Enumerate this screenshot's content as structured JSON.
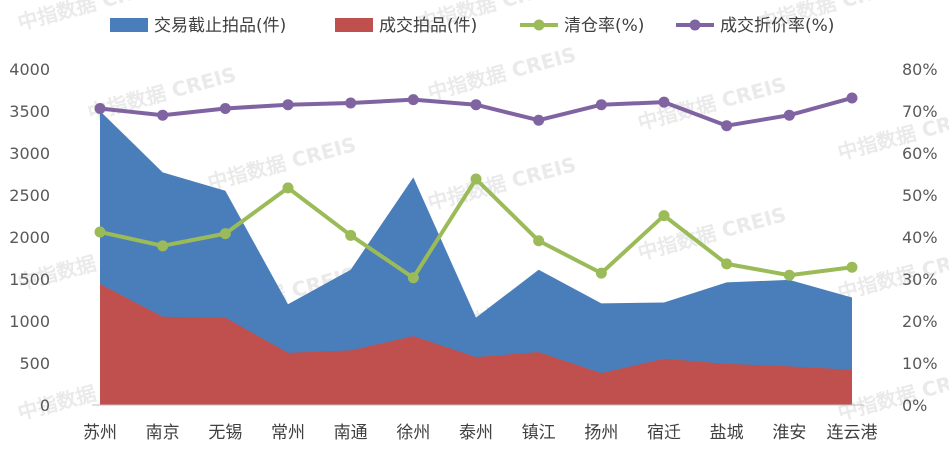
{
  "watermark": "中指数据 CREIS",
  "colors": {
    "area1": "#4a7ebb",
    "area2": "#c0504d",
    "line1": "#9bbb59",
    "line2": "#8064a2",
    "axis_text": "#595959"
  },
  "chart_data": {
    "type": "area",
    "categories": [
      "苏州",
      "南京",
      "无锡",
      "常州",
      "南通",
      "徐州",
      "泰州",
      "镇江",
      "扬州",
      "宿迁",
      "盐城",
      "淮安",
      "连云港"
    ],
    "y_left": {
      "ylim": [
        0,
        4000
      ],
      "ticks": [
        "0",
        "500",
        "1000",
        "1500",
        "2000",
        "2500",
        "3000",
        "3500",
        "4000"
      ]
    },
    "y_right": {
      "ylim": [
        0,
        80
      ],
      "ticks": [
        "0%",
        "10%",
        "20%",
        "30%",
        "40%",
        "50%",
        "60%",
        "70%",
        "80%"
      ]
    },
    "series": [
      {
        "name": "交易截止拍品(件)",
        "type": "area",
        "axis": "left",
        "color": "#4a7ebb",
        "values": [
          3500,
          2770,
          2550,
          1200,
          1610,
          2710,
          1040,
          1610,
          1210,
          1220,
          1460,
          1490,
          1280
        ]
      },
      {
        "name": "成交拍品(件)",
        "type": "area",
        "axis": "left",
        "color": "#c0504d",
        "values": [
          1440,
          1050,
          1040,
          620,
          650,
          820,
          570,
          630,
          380,
          550,
          490,
          460,
          420
        ]
      },
      {
        "name": "清仓率(%)",
        "type": "line",
        "axis": "right",
        "color": "#9bbb59",
        "values": [
          41.2,
          37.9,
          40.8,
          51.7,
          40.4,
          30.3,
          53.8,
          39.1,
          31.4,
          45.1,
          33.6,
          30.9,
          32.8
        ]
      },
      {
        "name": "成交折价率(%)",
        "type": "line",
        "axis": "right",
        "color": "#8064a2",
        "values": [
          70.6,
          69.0,
          70.6,
          71.5,
          71.9,
          72.7,
          71.5,
          67.8,
          71.5,
          72.1,
          66.5,
          69.0,
          73.1
        ]
      }
    ]
  }
}
